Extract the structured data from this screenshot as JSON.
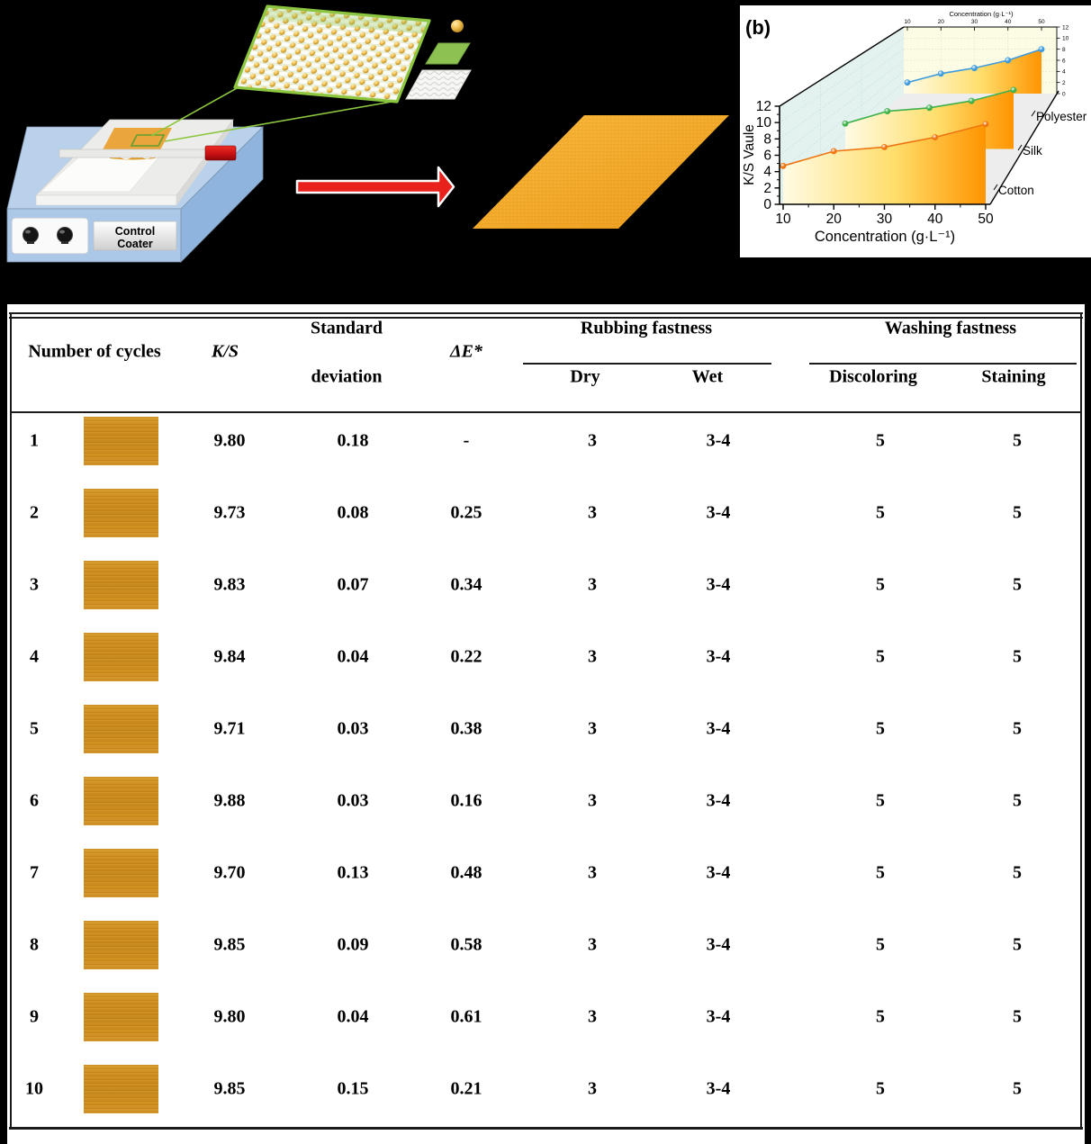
{
  "panel_a": {
    "machine_label_line1": "Control",
    "machine_label_line2": "Coater",
    "colors": {
      "machine_body": "#a9c6e8",
      "platform": "#ececea",
      "dye_patch": "#eaa53c",
      "handle_red": "#d91c1c",
      "callout_green": "#8cc63f",
      "nanoparticle_gold": "#d99a1b",
      "dyed_fabric": "#f2a626",
      "arrow_red": "#e8211d"
    }
  },
  "chart_data": {
    "type": "line",
    "projection": "3d-waterfall",
    "panel_label": "(b)",
    "x": [
      10,
      20,
      30,
      40,
      50
    ],
    "xlabel": "Concentration (g·L⁻¹)",
    "top_axis_label": "Concentration (g·L⁻¹)",
    "ylabel": "K/S Vaule",
    "ylim": [
      0,
      12
    ],
    "yticks": [
      0,
      2,
      4,
      6,
      8,
      10,
      12
    ],
    "grid": true,
    "legend_position": "right-depth-axis",
    "values_estimated": true,
    "series": [
      {
        "name": "Cotton",
        "color": "#ee7511",
        "values": [
          4.7,
          6.5,
          7.0,
          8.2,
          9.8
        ]
      },
      {
        "name": "Silk",
        "color": "#3db14b",
        "values": [
          3.7,
          5.5,
          6.0,
          7.0,
          8.6
        ]
      },
      {
        "name": "Polyester",
        "color": "#3e9bdd",
        "values": [
          2.0,
          3.6,
          4.6,
          6.0,
          8.0
        ]
      }
    ],
    "fill_gradient": [
      "#FFFBE3",
      "#FFDE6B",
      "#FF9400"
    ],
    "wall_colors": {
      "left_wall": "#e3f2ef",
      "back_wall": "#fcfbe4",
      "floor": "#ededed"
    }
  },
  "table": {
    "header": {
      "number_of_cycles": "Number of cycles",
      "ks": "K/S",
      "std_line1": "Standard",
      "std_line2": "deviation",
      "delta_e": "ΔE*",
      "rubbing_group": "Rubbing fastness",
      "washing_group": "Washing fastness",
      "dry": "Dry",
      "wet": "Wet",
      "discoloring": "Discoloring",
      "staining": "Staining"
    },
    "rows": [
      {
        "cycle": "1",
        "ks": "9.80",
        "std": "0.18",
        "delta_e": "-",
        "dry": "3",
        "wet": "3-4",
        "discoloring": "5",
        "staining": "5"
      },
      {
        "cycle": "2",
        "ks": "9.73",
        "std": "0.08",
        "delta_e": "0.25",
        "dry": "3",
        "wet": "3-4",
        "discoloring": "5",
        "staining": "5"
      },
      {
        "cycle": "3",
        "ks": "9.83",
        "std": "0.07",
        "delta_e": "0.34",
        "dry": "3",
        "wet": "3-4",
        "discoloring": "5",
        "staining": "5"
      },
      {
        "cycle": "4",
        "ks": "9.84",
        "std": "0.04",
        "delta_e": "0.22",
        "dry": "3",
        "wet": "3-4",
        "discoloring": "5",
        "staining": "5"
      },
      {
        "cycle": "5",
        "ks": "9.71",
        "std": "0.03",
        "delta_e": "0.38",
        "dry": "3",
        "wet": "3-4",
        "discoloring": "5",
        "staining": "5"
      },
      {
        "cycle": "6",
        "ks": "9.88",
        "std": "0.03",
        "delta_e": "0.16",
        "dry": "3",
        "wet": "3-4",
        "discoloring": "5",
        "staining": "5"
      },
      {
        "cycle": "7",
        "ks": "9.70",
        "std": "0.13",
        "delta_e": "0.48",
        "dry": "3",
        "wet": "3-4",
        "discoloring": "5",
        "staining": "5"
      },
      {
        "cycle": "8",
        "ks": "9.85",
        "std": "0.09",
        "delta_e": "0.58",
        "dry": "3",
        "wet": "3-4",
        "discoloring": "5",
        "staining": "5"
      },
      {
        "cycle": "9",
        "ks": "9.80",
        "std": "0.04",
        "delta_e": "0.61",
        "dry": "3",
        "wet": "3-4",
        "discoloring": "5",
        "staining": "5"
      },
      {
        "cycle": "10",
        "ks": "9.85",
        "std": "0.15",
        "delta_e": "0.21",
        "dry": "3",
        "wet": "3-4",
        "discoloring": "5",
        "staining": "5"
      }
    ]
  }
}
